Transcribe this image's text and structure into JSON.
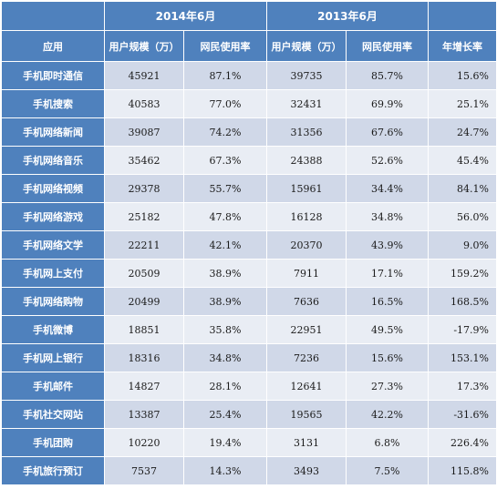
{
  "header": {
    "period_2014": "2014年6月",
    "period_2013": "2013年6月",
    "col_app": "应用",
    "col_users_2014": "用户规模（万）",
    "col_rate_2014": "网民使用率",
    "col_users_2013": "用户规模（万）",
    "col_rate_2013": "网民使用率",
    "col_growth": "年增长率"
  },
  "rows": [
    {
      "app": "手机即时通信",
      "users_2014": "45921",
      "rate_2014": "87.1%",
      "users_2013": "39735",
      "rate_2013": "85.7%",
      "growth": "15.6%"
    },
    {
      "app": "手机搜索",
      "users_2014": "40583",
      "rate_2014": "77.0%",
      "users_2013": "32431",
      "rate_2013": "69.9%",
      "growth": "25.1%"
    },
    {
      "app": "手机网络新闻",
      "users_2014": "39087",
      "rate_2014": "74.2%",
      "users_2013": "31356",
      "rate_2013": "67.6%",
      "growth": "24.7%"
    },
    {
      "app": "手机网络音乐",
      "users_2014": "35462",
      "rate_2014": "67.3%",
      "users_2013": "24388",
      "rate_2013": "52.6%",
      "growth": "45.4%"
    },
    {
      "app": "手机网络视频",
      "users_2014": "29378",
      "rate_2014": "55.7%",
      "users_2013": "15961",
      "rate_2013": "34.4%",
      "growth": "84.1%"
    },
    {
      "app": "手机网络游戏",
      "users_2014": "25182",
      "rate_2014": "47.8%",
      "users_2013": "16128",
      "rate_2013": "34.8%",
      "growth": "56.0%"
    },
    {
      "app": "手机网络文学",
      "users_2014": "22211",
      "rate_2014": "42.1%",
      "users_2013": "20370",
      "rate_2013": "43.9%",
      "growth": "9.0%"
    },
    {
      "app": "手机网上支付",
      "users_2014": "20509",
      "rate_2014": "38.9%",
      "users_2013": "7911",
      "rate_2013": "17.1%",
      "growth": "159.2%"
    },
    {
      "app": "手机网络购物",
      "users_2014": "20499",
      "rate_2014": "38.9%",
      "users_2013": "7636",
      "rate_2013": "16.5%",
      "growth": "168.5%"
    },
    {
      "app": "手机微博",
      "users_2014": "18851",
      "rate_2014": "35.8%",
      "users_2013": "22951",
      "rate_2013": "49.5%",
      "growth": "-17.9%"
    },
    {
      "app": "手机网上银行",
      "users_2014": "18316",
      "rate_2014": "34.8%",
      "users_2013": "7236",
      "rate_2013": "15.6%",
      "growth": "153.1%"
    },
    {
      "app": "手机邮件",
      "users_2014": "14827",
      "rate_2014": "28.1%",
      "users_2013": "12641",
      "rate_2013": "27.3%",
      "growth": "17.3%"
    },
    {
      "app": "手机社交网站",
      "users_2014": "13387",
      "rate_2014": "25.4%",
      "users_2013": "19565",
      "rate_2013": "42.2%",
      "growth": "-31.6%"
    },
    {
      "app": "手机团购",
      "users_2014": "10220",
      "rate_2014": "19.4%",
      "users_2013": "3131",
      "rate_2013": "6.8%",
      "growth": "226.4%"
    },
    {
      "app": "手机旅行预订",
      "users_2014": "7537",
      "rate_2014": "14.3%",
      "users_2013": "3493",
      "rate_2013": "7.5%",
      "growth": "115.8%"
    }
  ],
  "colors": {
    "header_bg": "#4f81bd",
    "row_dark": "#d0d8e8",
    "row_light": "#e9edf4"
  }
}
